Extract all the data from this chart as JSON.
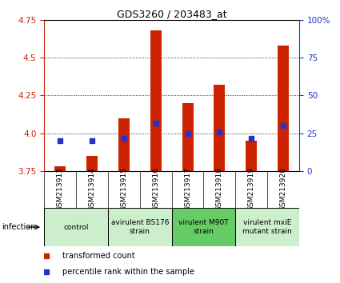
{
  "title": "GDS3260 / 203483_at",
  "samples": [
    "GSM213913",
    "GSM213914",
    "GSM213915",
    "GSM213916",
    "GSM213917",
    "GSM213918",
    "GSM213919",
    "GSM213920"
  ],
  "red_values": [
    3.78,
    3.85,
    4.1,
    4.68,
    4.2,
    4.32,
    3.95,
    4.58
  ],
  "blue_values_pct": [
    20,
    20,
    22,
    32,
    25,
    26,
    22,
    30
  ],
  "ylim_left": [
    3.75,
    4.75
  ],
  "ylim_right": [
    0,
    100
  ],
  "yticks_left": [
    3.75,
    4.0,
    4.25,
    4.5,
    4.75
  ],
  "yticks_right": [
    0,
    25,
    50,
    75,
    100
  ],
  "groups": [
    {
      "label": "control",
      "samples": [
        0,
        1
      ],
      "color": "#cceecc"
    },
    {
      "label": "avirulent BS176\nstrain",
      "samples": [
        2,
        3
      ],
      "color": "#cceecc"
    },
    {
      "label": "virulent M90T\nstrain",
      "samples": [
        4,
        5
      ],
      "color": "#66cc66"
    },
    {
      "label": "virulent mxiE\nmutant strain",
      "samples": [
        6,
        7
      ],
      "color": "#cceecc"
    }
  ],
  "bar_color": "#cc2200",
  "dot_color": "#2233cc",
  "bar_width": 0.35,
  "dot_size": 5,
  "left_axis_color": "#cc2200",
  "right_axis_color": "#2233cc",
  "sample_bg_color": "#cccccc",
  "legend_items": [
    "transformed count",
    "percentile rank within the sample"
  ],
  "infection_label": "infection"
}
